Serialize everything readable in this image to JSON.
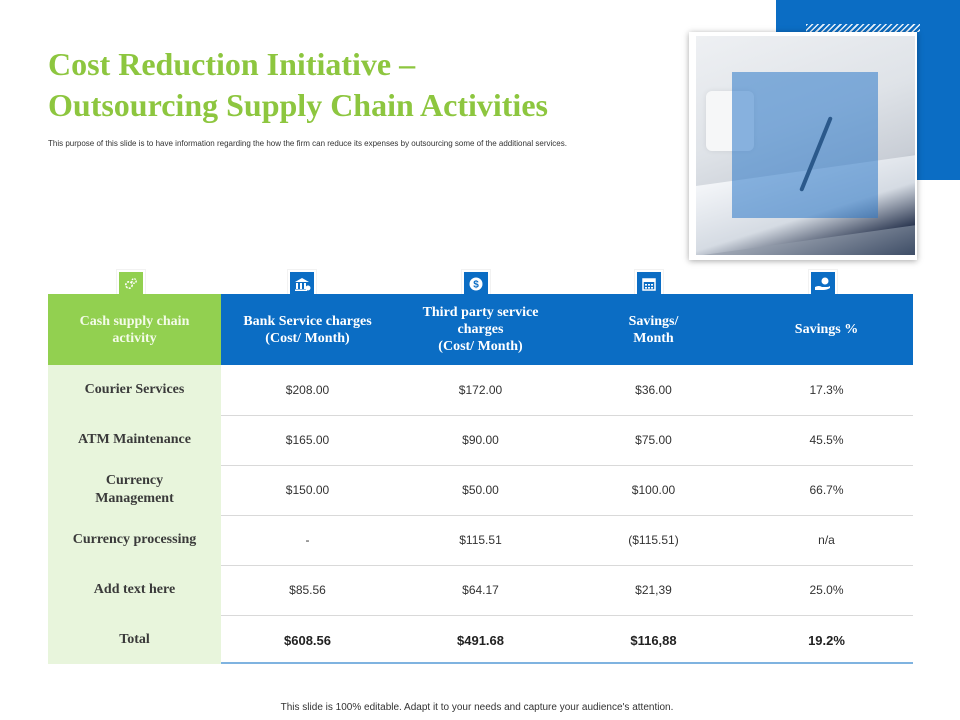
{
  "title_line1": "Cost Reduction Initiative –",
  "title_line2": "Outsourcing Supply Chain Activities",
  "subtitle": "This purpose of this slide is to have information regarding the how the firm can reduce its expenses by outsourcing some of the additional services.",
  "icons": [
    "gears-icon",
    "bank-icon",
    "dollar-coin-icon",
    "calendar-icon",
    "hand-money-icon"
  ],
  "colors": {
    "green": "#92d050",
    "blue": "#0b6dc4",
    "title_green": "#8dc63f"
  },
  "table": {
    "headers": [
      "Cash supply chain\nactivity",
      "Bank Service charges\n(Cost/ Month)",
      "Third party service\ncharges\n(Cost/ Month)",
      "Savings/\nMonth",
      "Savings %"
    ],
    "rows": [
      {
        "activity": "Courier Services",
        "bank": "$208.00",
        "third": "$172.00",
        "savings": "$36.00",
        "pct": "17.3%"
      },
      {
        "activity": "ATM Maintenance",
        "bank": "$165.00",
        "third": "$90.00",
        "savings": "$75.00",
        "pct": "45.5%"
      },
      {
        "activity": "Currency\nManagement",
        "bank": "$150.00",
        "third": "$50.00",
        "savings": "$100.00",
        "pct": "66.7%"
      },
      {
        "activity": "Currency processing",
        "bank": "-",
        "third": "$115.51",
        "savings": "($115.51)",
        "pct": "n/a"
      },
      {
        "activity": "Add text here",
        "bank": "$85.56",
        "third": "$64.17",
        "savings": "$21,39",
        "pct": "25.0%"
      },
      {
        "activity": "Total",
        "bank": "$608.56",
        "third": "$491.68",
        "savings": "$116,88",
        "pct": "19.2%"
      }
    ]
  },
  "footer": "This slide is 100% editable.  Adapt it to your needs and capture your audience's attention."
}
